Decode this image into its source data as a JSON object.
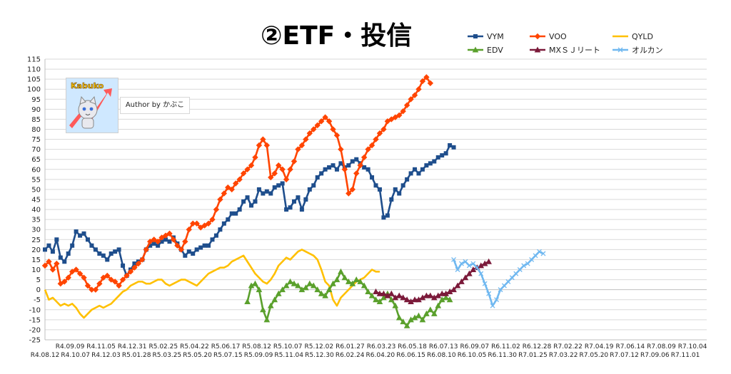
{
  "chart_data": {
    "type": "line",
    "title": "②ETF・投信",
    "ylim": [
      -25,
      115
    ],
    "yticks": [
      115,
      110,
      105,
      100,
      95,
      90,
      85,
      80,
      75,
      70,
      65,
      60,
      55,
      50,
      45,
      40,
      35,
      30,
      25,
      20,
      15,
      10,
      5,
      0,
      -5,
      -10,
      -15,
      -20,
      -25
    ],
    "grid": "horizontal",
    "legend_position": "top-right",
    "x_ticks_upper": [
      "R4.09.09",
      "R4.11.05",
      "R4.12.31",
      "R5.02.25",
      "R5.04.22",
      "R5.06.17",
      "R5.08.12",
      "R5.10.07",
      "R5.12.02",
      "R6.01.27",
      "R6.03.23",
      "R6.05.18",
      "R6.07.13",
      "R6.09.07",
      "R6.11.02",
      "R6.12.28",
      "R7.02.22",
      "R7.04.19",
      "R7.06.14",
      "R7.08.09",
      "R7.10.04"
    ],
    "x_ticks_lower": [
      "R4.08.12",
      "R4.10.07",
      "R4.12.03",
      "R5.01.28",
      "R5.03.25",
      "R5.05.20",
      "R5.07.15",
      "R5.09.09",
      "R5.11.04",
      "R5.12.30",
      "R6.02.24",
      "R6.04.20",
      "R6.06.15",
      "R6.08.10",
      "R6.10.05",
      "R6.11.30",
      "R7.01.25",
      "R7.03.22",
      "R7.05.20",
      "R7.07.12",
      "R7.09.06",
      "R7.11.01"
    ],
    "x_range": [
      0,
      170
    ],
    "series": [
      {
        "name": "VYM",
        "color": "#1f4e8c",
        "marker": "square",
        "start": 0,
        "values": [
          20,
          22,
          19,
          25,
          16,
          14,
          18,
          22,
          29,
          27,
          28,
          25,
          22,
          20,
          18,
          17,
          15,
          18,
          19,
          20,
          12,
          7,
          10,
          13,
          14,
          15,
          20,
          22,
          23,
          22,
          24,
          25,
          24,
          26,
          23,
          20,
          17,
          19,
          18,
          20,
          21,
          22,
          22,
          25,
          27,
          30,
          33,
          35,
          38,
          38,
          40,
          44,
          46,
          42,
          44,
          50,
          48,
          49,
          48,
          51,
          52,
          53,
          40,
          41,
          44,
          46,
          40,
          45,
          50,
          52,
          56,
          58,
          60,
          61,
          62,
          60,
          63,
          61,
          62,
          64,
          65,
          63,
          61,
          60,
          56,
          52,
          50,
          36,
          37,
          45,
          50,
          48,
          52,
          55,
          58,
          60,
          58,
          60,
          62,
          63,
          64,
          66,
          67,
          68,
          72,
          71
        ]
      },
      {
        "name": "VOO",
        "color": "#ff4500",
        "marker": "diamond",
        "start": 0,
        "values": [
          12,
          14,
          10,
          13,
          3,
          4,
          6,
          9,
          10,
          8,
          6,
          2,
          0,
          0,
          3,
          6,
          7,
          5,
          4,
          2,
          5,
          7,
          9,
          11,
          13,
          15,
          20,
          24,
          25,
          24,
          26,
          27,
          28,
          25,
          22,
          20,
          24,
          30,
          33,
          33,
          31,
          32,
          33,
          35,
          40,
          45,
          48,
          51,
          50,
          53,
          55,
          58,
          60,
          62,
          66,
          72,
          75,
          72,
          56,
          58,
          62,
          60,
          55,
          60,
          64,
          70,
          72,
          75,
          78,
          80,
          82,
          84,
          86,
          84,
          80,
          77,
          70,
          60,
          48,
          50,
          58,
          62,
          66,
          70,
          72,
          75,
          78,
          80,
          84,
          85,
          86,
          87,
          89,
          92,
          95,
          97,
          100,
          104,
          106,
          103
        ]
      },
      {
        "name": "QYLD",
        "color": "#ffc000",
        "marker": "none",
        "start": 0,
        "values": [
          0,
          -5,
          -4,
          -6,
          -8,
          -7,
          -8,
          -7,
          -9,
          -12,
          -14,
          -12,
          -10,
          -9,
          -8,
          -9,
          -8,
          -7,
          -5,
          -3,
          -1,
          0,
          2,
          3,
          4,
          4,
          3,
          3,
          4,
          5,
          5,
          3,
          2,
          3,
          4,
          5,
          5,
          4,
          3,
          2,
          4,
          6,
          8,
          9,
          10,
          11,
          11,
          12,
          14,
          15,
          16,
          17,
          14,
          11,
          8,
          6,
          4,
          3,
          5,
          8,
          12,
          14,
          16,
          15,
          17,
          19,
          20,
          19,
          18,
          17,
          15,
          10,
          4,
          2,
          -5,
          -8,
          -4,
          -2,
          0,
          2,
          4,
          5,
          6,
          8,
          10,
          9,
          9
        ]
      },
      {
        "name": "EDV",
        "color": "#5aa02c",
        "marker": "triangle",
        "start": 52,
        "values": [
          -6,
          2,
          3,
          0,
          -10,
          -15,
          -8,
          -5,
          -2,
          0,
          2,
          4,
          3,
          2,
          0,
          1,
          3,
          2,
          0,
          -2,
          -3,
          0,
          3,
          5,
          9,
          6,
          4,
          3,
          5,
          4,
          2,
          -1,
          -3,
          -5,
          -6,
          -4,
          -2,
          -5,
          -8,
          -14,
          -16,
          -18,
          -15,
          -14,
          -13,
          -15,
          -12,
          -10,
          -12,
          -8,
          -5,
          -4,
          -5
        ]
      },
      {
        "name": "MXＳＪリート",
        "color": "#7b1a3a",
        "marker": "triangle",
        "start": 85,
        "values": [
          -1,
          -2,
          -2,
          -3,
          -2,
          -4,
          -3,
          -4,
          -5,
          -6,
          -5,
          -5,
          -4,
          -3,
          -3,
          -4,
          -3,
          -2,
          -2,
          -1,
          0,
          2,
          4,
          6,
          8,
          10,
          11,
          12,
          13,
          14
        ]
      },
      {
        "name": "オルカン",
        "color": "#70b8f0",
        "marker": "x",
        "start": 105,
        "values": [
          15,
          10,
          13,
          14,
          12,
          13,
          11,
          8,
          3,
          -2,
          -8,
          -5,
          0,
          2,
          4,
          6,
          8,
          10,
          12,
          13,
          15,
          17,
          19,
          18
        ]
      }
    ]
  },
  "badge": {
    "logo_text": "Kabuko",
    "author": "Author by かぶこ"
  }
}
